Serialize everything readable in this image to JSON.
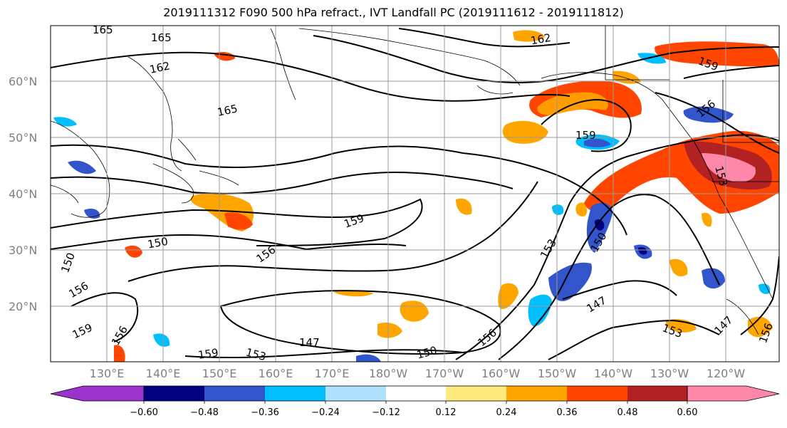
{
  "title": "2019111312 F090 500 hPa refract., IVT Landfall PC (2019111612 - 2019111812)",
  "map": {
    "lat_labels": [
      "60°N",
      "50°N",
      "40°N",
      "30°N",
      "20°N"
    ],
    "lon_labels": [
      "130°E",
      "140°E",
      "150°E",
      "160°E",
      "170°E",
      "180°W",
      "170°W",
      "160°W",
      "150°W",
      "140°W",
      "130°W",
      "120°W"
    ],
    "contour_labels": [
      "165",
      "165",
      "162",
      "165",
      "162",
      "159",
      "156",
      "159",
      "153",
      "150",
      "150",
      "156",
      "159",
      "156",
      "159",
      "147",
      "153",
      "150",
      "159",
      "147",
      "153",
      "150",
      "156",
      "156",
      "153",
      "147",
      "156"
    ]
  },
  "colorbar": {
    "ticks": [
      "−0.60",
      "−0.48",
      "−0.36",
      "−0.24",
      "−0.12",
      "0.12",
      "0.24",
      "0.36",
      "0.48",
      "0.60"
    ],
    "colors": [
      "#9933cc",
      "#000080",
      "#3355cc",
      "#00bfff",
      "#b0e2ff",
      "#ffffff",
      "#ffea80",
      "#ffa500",
      "#ff4500",
      "#b22222",
      "#ff88aa"
    ]
  }
}
